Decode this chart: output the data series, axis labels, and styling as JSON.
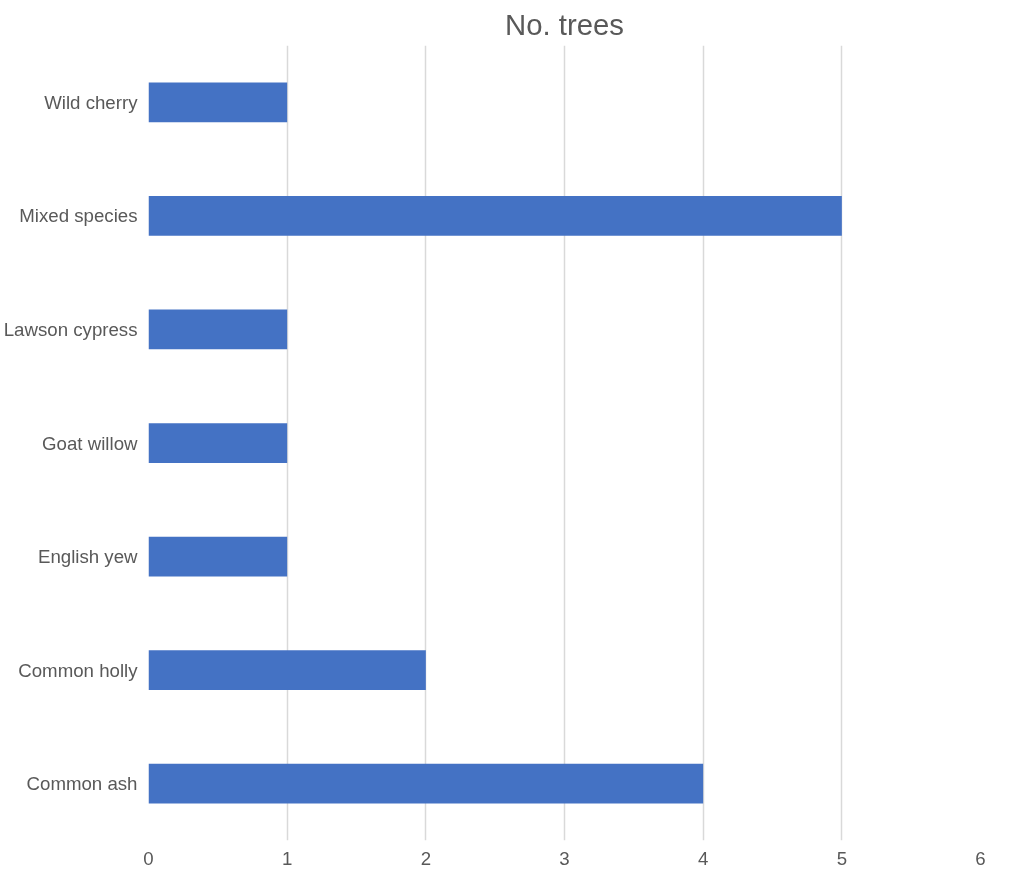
{
  "chart_data": {
    "type": "bar",
    "title": "No. trees",
    "orientation": "horizontal",
    "categories": [
      "Wild cherry",
      "Mixed species",
      "Lawson cypress",
      "Goat willow",
      "English yew",
      "Common holly",
      "Common ash"
    ],
    "values": [
      1,
      5,
      1,
      1,
      1,
      2,
      4
    ],
    "color": "#4472c4",
    "xlim": [
      0,
      6
    ],
    "xticks": [
      0,
      1,
      2,
      3,
      4,
      5,
      6
    ],
    "grid": "x"
  }
}
